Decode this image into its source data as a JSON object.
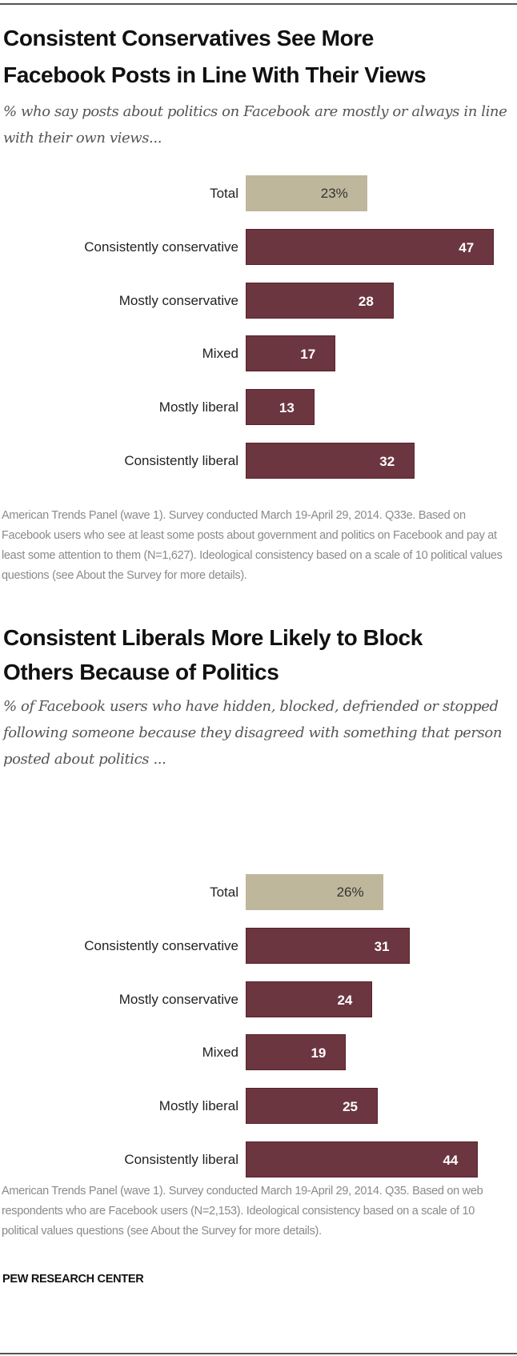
{
  "chart_data": [
    {
      "type": "bar",
      "orientation": "horizontal",
      "title": "Consistent Conservatives See More Facebook Posts in Line With Their Views",
      "subtitle": "% who say posts about politics on Facebook are mostly or always in line with their own views...",
      "categories": [
        "Total",
        "Consistently conservative",
        "Mostly conservative",
        "Mixed",
        "Mostly liberal",
        "Consistently liberal"
      ],
      "values": [
        23,
        47,
        28,
        17,
        13,
        32
      ],
      "value_labels": [
        "23%",
        "47",
        "28",
        "17",
        "13",
        "32"
      ],
      "note": "American Trends Panel (wave 1). Survey conducted March 19-April 29, 2014. Q33e. Based on Facebook users who see at least some posts about government and politics on Facebook and pay at least some attention to them (N=1,627). Ideological consistency based on a scale of 10 political values questions (see About the Survey for more details).",
      "colors": {
        "total": "#bfb79c",
        "group": "#6c3641"
      }
    },
    {
      "type": "bar",
      "orientation": "horizontal",
      "title": "Consistent Liberals More Likely to Block Others Because of Politics",
      "subtitle": "% of Facebook users who have hidden, blocked, defriended or stopped following someone because they disagreed with something that person posted about politics ...",
      "categories": [
        "Total",
        "Consistently conservative",
        "Mostly conservative",
        "Mixed",
        "Mostly liberal",
        "Consistently liberal"
      ],
      "values": [
        26,
        31,
        24,
        19,
        25,
        44
      ],
      "value_labels": [
        "26%",
        "31",
        "24",
        "19",
        "25",
        "44"
      ],
      "note": "American Trends Panel (wave 1). Survey conducted March 19-April 29, 2014. Q35. Based on web respondents who are Facebook users (N=2,153). Ideological consistency based on a scale of 10 political values questions (see About the Survey for more details).",
      "colors": {
        "total": "#bfb79c",
        "group": "#6c3641"
      }
    }
  ],
  "titles": [
    [
      "Consistent Conservatives See More",
      "Facebook Posts in Line With Their Views"
    ],
    [
      "Consistent Liberals More Likely to Block",
      "Others Because of Politics"
    ]
  ],
  "source": "PEW RESEARCH CENTER"
}
